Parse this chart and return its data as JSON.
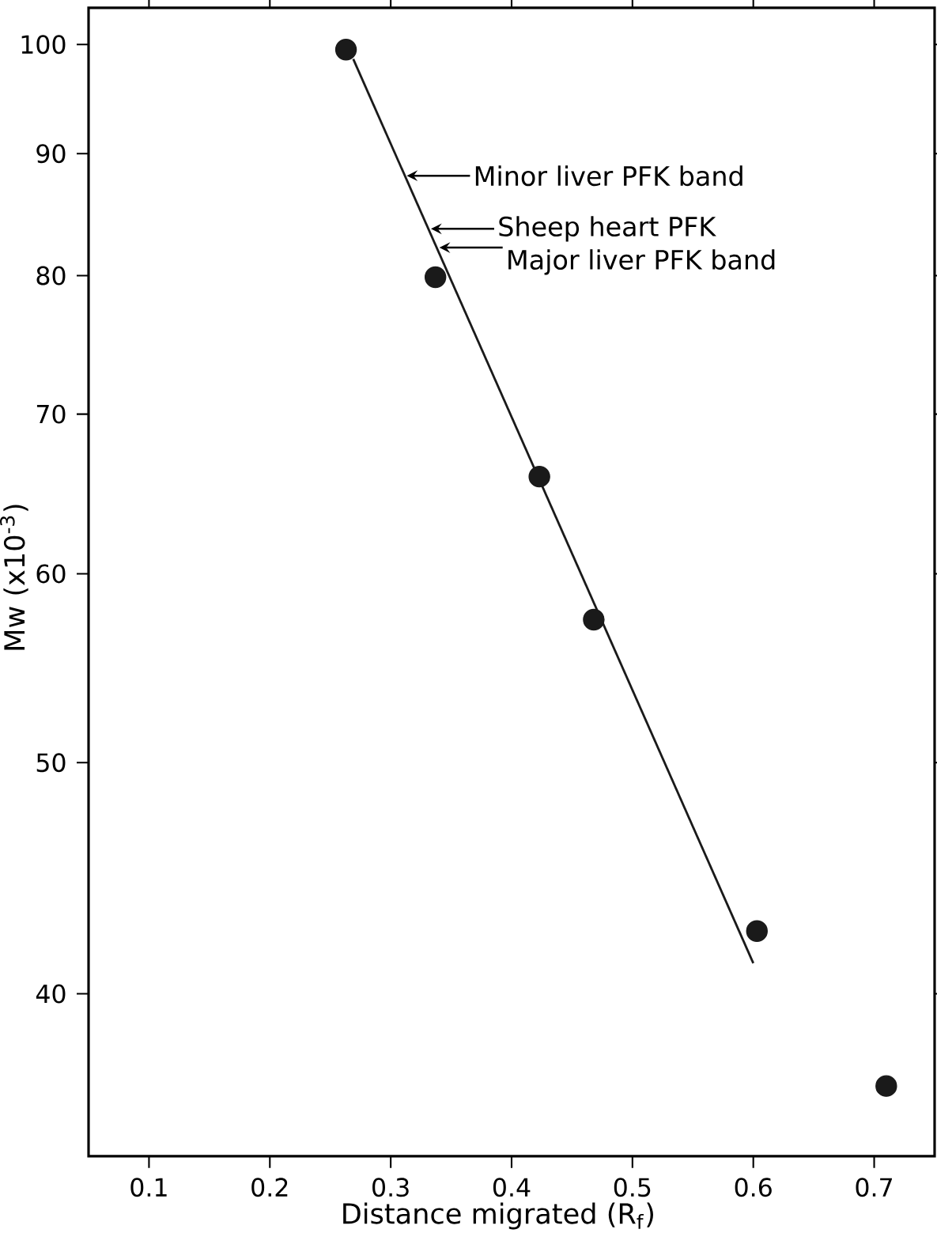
{
  "chart_data": {
    "type": "scatter",
    "xlabel": "Distance migrated (R$_{f}$)",
    "ylabel": "Mw (x10$^{-3}$)",
    "x": [
      0.263,
      0.337,
      0.423,
      0.468,
      0.603,
      0.71
    ],
    "series": [
      {
        "type": "scatter",
        "color": "#1a1a1a",
        "marker": "circle",
        "values": [
          99.5,
          79.9,
          65.9,
          57.4,
          42.5,
          36.6
        ]
      },
      {
        "type": "line",
        "color": "#1a1a1a",
        "marker": "none",
        "x": [
          0.269,
          0.6
        ],
        "values": [
          98.6,
          41.2
        ]
      }
    ],
    "xlim": [
      0.05,
      0.75
    ],
    "ylim": [
      34.2,
      103.6
    ],
    "xticks": [
      0.1,
      0.2,
      0.3,
      0.4,
      0.5,
      0.6,
      0.7
    ],
    "yticks": [
      40,
      50,
      60,
      70,
      80,
      90,
      100
    ],
    "log": true,
    "grid": false,
    "annotations": [
      {
        "text": "Minor liver PFK band",
        "x": 0.31,
        "y": 88.1
      },
      {
        "text": "Sheep heart PFK",
        "x": 0.33,
        "y": 83.7
      },
      {
        "text": "Major liver PFK band",
        "x": 0.337,
        "y": 82.2
      }
    ]
  }
}
